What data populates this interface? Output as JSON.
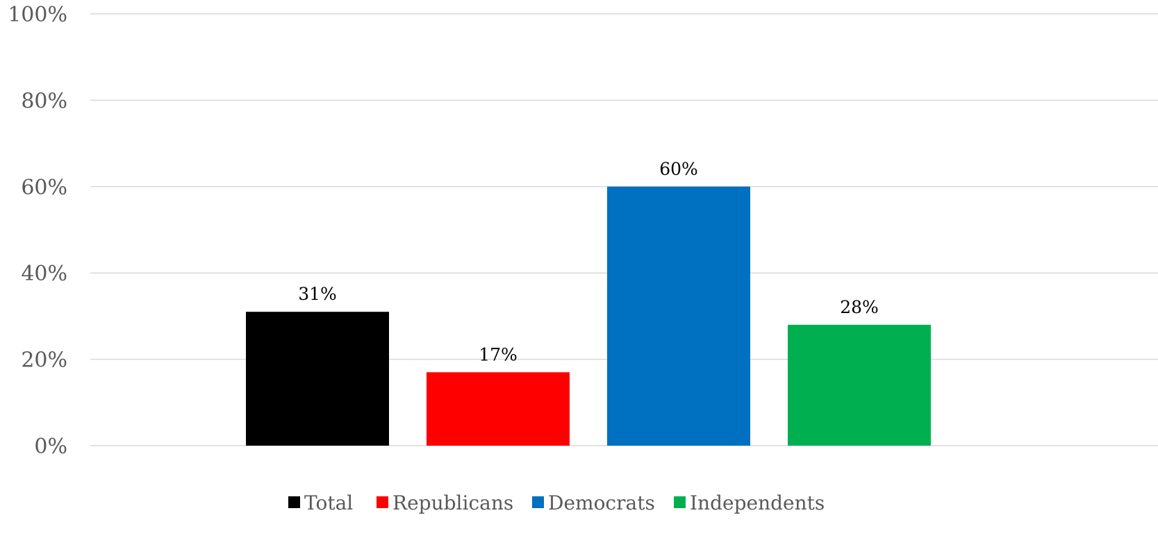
{
  "chart_data": {
    "type": "bar",
    "categories": [
      "Total",
      "Republicans",
      "Democrats",
      "Independents"
    ],
    "series": [
      {
        "name": "Total",
        "color": "#000000",
        "value": 31,
        "label": "31%"
      },
      {
        "name": "Republicans",
        "color": "#ff0000",
        "value": 17,
        "label": "17%"
      },
      {
        "name": "Democrats",
        "color": "#0070c0",
        "value": 60,
        "label": "60%"
      },
      {
        "name": "Independents",
        "color": "#00b050",
        "value": 28,
        "label": "28%"
      }
    ],
    "ylim": [
      0,
      100
    ],
    "yticks": [
      {
        "value": 0,
        "label": "0%"
      },
      {
        "value": 20,
        "label": "20%"
      },
      {
        "value": 40,
        "label": "40%"
      },
      {
        "value": 60,
        "label": "60%"
      },
      {
        "value": 80,
        "label": "80%"
      },
      {
        "value": 100,
        "label": "100%"
      }
    ],
    "title": "",
    "xlabel": "",
    "ylabel": "",
    "grid": true,
    "legend_position": "bottom"
  }
}
